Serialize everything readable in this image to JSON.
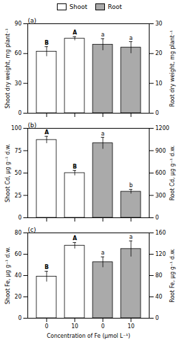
{
  "chart_data": [
    {
      "type": "bar",
      "title": "(a)",
      "categories": [
        "0",
        "10",
        "0",
        "10"
      ],
      "series": [
        {
          "name": "Shoot",
          "color": "#ffffff",
          "values": [
            62,
            75,
            null,
            null
          ],
          "errors": [
            5,
            2,
            null,
            null
          ],
          "letters": [
            "B",
            "A",
            null,
            null
          ]
        },
        {
          "name": "Root",
          "color": "#aaaaaa",
          "axis": "y2",
          "values": [
            null,
            null,
            23,
            22
          ],
          "errors": [
            null,
            null,
            2,
            2
          ],
          "letters": [
            null,
            null,
            "a",
            "a"
          ]
        }
      ],
      "ylabel": "Shoot dry weight, mg plant⁻¹",
      "y2label": "Root dry weight, mg plant⁻¹",
      "ylim": [
        0,
        90
      ],
      "yticks": [
        0,
        30,
        60,
        90
      ],
      "y2lim": [
        0,
        30
      ],
      "y2ticks": [
        0,
        10,
        20,
        30
      ],
      "tick_labels": "y",
      "legend": "top"
    },
    {
      "type": "bar",
      "title": "(b)",
      "categories": [
        "0",
        "10",
        "0",
        "10"
      ],
      "series": [
        {
          "name": "Shoot",
          "color": "#ffffff",
          "values": [
            87,
            50,
            null,
            null
          ],
          "errors": [
            4,
            3,
            null,
            null
          ],
          "letters": [
            "A",
            "B",
            null,
            null
          ]
        },
        {
          "name": "Root",
          "color": "#aaaaaa",
          "axis": "y2",
          "values": [
            null,
            null,
            1000,
            350
          ],
          "errors": [
            null,
            null,
            80,
            30
          ],
          "letters": [
            null,
            null,
            "a",
            "b"
          ]
        }
      ],
      "ylabel": "Shoot Cd, μg g⁻¹ d.w.",
      "y2label": "Root Cd, μg g⁻¹ d.w.",
      "ylim": [
        0,
        100
      ],
      "yticks": [
        0,
        25,
        50,
        75,
        100
      ],
      "y2lim": [
        0,
        1200
      ],
      "y2ticks": [
        0,
        300,
        600,
        900,
        1200
      ],
      "tick_labels": "y"
    },
    {
      "type": "bar",
      "title": "(c)",
      "categories": [
        "0",
        "10",
        "0",
        "10"
      ],
      "series": [
        {
          "name": "Shoot",
          "color": "#ffffff",
          "values": [
            39,
            68,
            null,
            null
          ],
          "errors": [
            5,
            3,
            null,
            null
          ],
          "letters": [
            "B",
            "A",
            null,
            null
          ]
        },
        {
          "name": "Root",
          "color": "#aaaaaa",
          "axis": "y2",
          "values": [
            null,
            null,
            105,
            130
          ],
          "errors": [
            null,
            null,
            10,
            15
          ],
          "letters": [
            null,
            null,
            "a",
            "a"
          ]
        }
      ],
      "ylabel": "Shoot Fe, μg g⁻¹ d.w.",
      "y2label": "Root Fe, μg g⁻¹ d.w.",
      "xlabel": "Concentration of Fe (μmol L⁻¹)",
      "ylim": [
        0,
        80
      ],
      "yticks": [
        0,
        20,
        40,
        60,
        80
      ],
      "y2lim": [
        0,
        160
      ],
      "y2ticks": [
        0,
        40,
        80,
        120,
        160
      ]
    }
  ]
}
